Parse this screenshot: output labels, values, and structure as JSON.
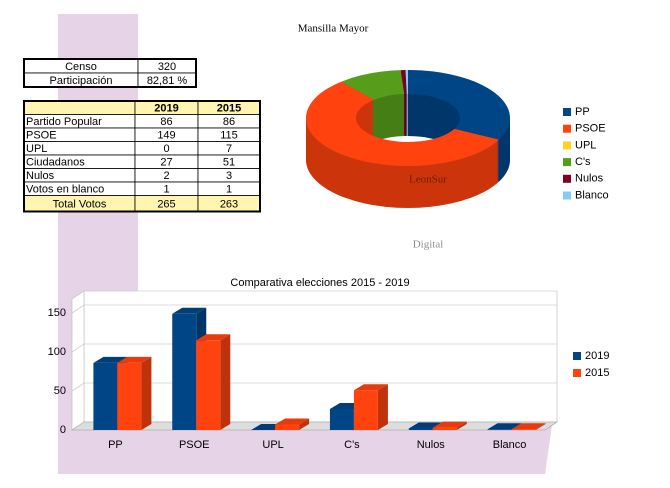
{
  "title": "Mansilla Mayor",
  "summary": {
    "rows": [
      [
        "Censo",
        "320"
      ],
      [
        "Participación",
        "82,81 %"
      ]
    ]
  },
  "results": {
    "header": [
      "2019",
      "2015"
    ],
    "rows": [
      [
        "Partido Popular",
        "86",
        "86"
      ],
      [
        "PSOE",
        "149",
        "115"
      ],
      [
        "UPL",
        "0",
        "7"
      ],
      [
        "Ciudadanos",
        "27",
        "51"
      ],
      [
        "Nulos",
        "2",
        "3"
      ],
      [
        "Votos en blanco",
        "1",
        "1"
      ]
    ],
    "total": [
      "Total Votos",
      "265",
      "263"
    ]
  },
  "watermark": [
    "LeonSur",
    "Digital"
  ],
  "chart_data": [
    {
      "type": "pie",
      "categories": [
        "PP",
        "PSOE",
        "UPL",
        "C's",
        "Nulos",
        "Blanco"
      ],
      "values": [
        86,
        149,
        0,
        27,
        2,
        1
      ],
      "colors": [
        "#004586",
        "#ff420e",
        "#ffd320",
        "#579d1c",
        "#7e0021",
        "#83caff"
      ]
    },
    {
      "type": "bar",
      "title": "Comparativa elecciones 2015 - 2019",
      "categories": [
        "PP",
        "PSOE",
        "UPL",
        "C's",
        "Nulos",
        "Blanco"
      ],
      "series": [
        {
          "name": "2019",
          "color": "#004586",
          "values": [
            86,
            149,
            0,
            27,
            2,
            1
          ]
        },
        {
          "name": "2015",
          "color": "#ff420e",
          "values": [
            86,
            115,
            7,
            51,
            3,
            1
          ]
        }
      ],
      "ylim": [
        0,
        150
      ],
      "yticks": [
        0,
        50,
        100,
        150
      ],
      "grid": true
    }
  ]
}
